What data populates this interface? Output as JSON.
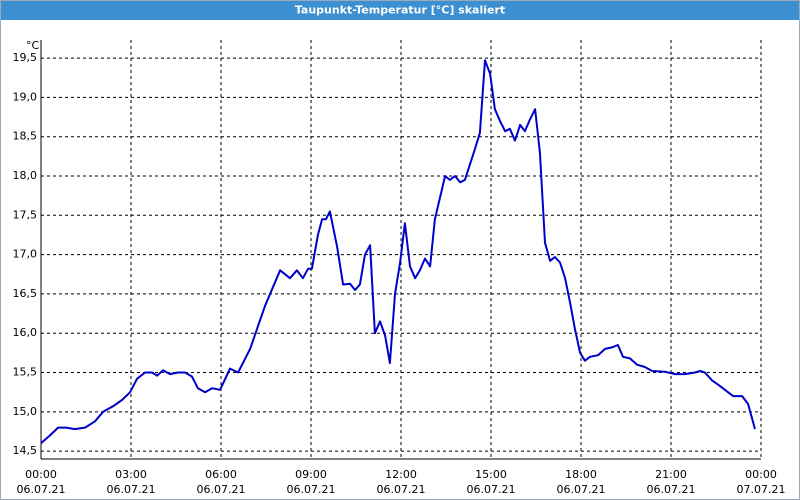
{
  "chart_data": {
    "type": "line",
    "title": "Taupunkt-Temperatur [°C] skaliert",
    "y_unit": "°C",
    "x": [
      0,
      0.3,
      0.57,
      0.83,
      1.13,
      1.47,
      1.8,
      2.07,
      2.4,
      2.7,
      2.97,
      3.2,
      3.47,
      3.7,
      3.87,
      4.07,
      4.3,
      4.57,
      4.8,
      5.03,
      5.23,
      5.47,
      5.7,
      5.97,
      6.3,
      6.57,
      6.97,
      7.47,
      7.97,
      8.3,
      8.53,
      8.73,
      8.9,
      9.03,
      9.23,
      9.37,
      9.5,
      9.63,
      9.87,
      10.07,
      10.3,
      10.47,
      10.63,
      10.8,
      10.97,
      11.13,
      11.3,
      11.47,
      11.63,
      11.8,
      11.97,
      12.13,
      12.3,
      12.47,
      12.63,
      12.8,
      12.97,
      13.13,
      13.47,
      13.63,
      13.8,
      13.97,
      14.13,
      14.47,
      14.63,
      14.8,
      14.97,
      15.13,
      15.3,
      15.47,
      15.63,
      15.8,
      15.97,
      16.13,
      16.3,
      16.47,
      16.63,
      16.8,
      16.97,
      17.13,
      17.3,
      17.47,
      17.63,
      17.8,
      17.97,
      18.13,
      18.3,
      18.57,
      18.8,
      19.03,
      19.23,
      19.4,
      19.63,
      19.87,
      20.13,
      20.37,
      20.8,
      21.13,
      21.47,
      21.8,
      21.97,
      22.13,
      22.37,
      22.63,
      22.9,
      23.07,
      23.37,
      23.57,
      23.8
    ],
    "series": [
      {
        "name": "Taupunkt-Temperatur",
        "color": "#0000cc",
        "values": [
          14.6,
          14.7,
          14.8,
          14.8,
          14.78,
          14.8,
          14.88,
          15.0,
          15.07,
          15.15,
          15.25,
          15.42,
          15.5,
          15.5,
          15.46,
          15.53,
          15.48,
          15.5,
          15.5,
          15.45,
          15.3,
          15.25,
          15.3,
          15.28,
          15.55,
          15.5,
          15.8,
          16.35,
          16.8,
          16.7,
          16.8,
          16.7,
          16.82,
          16.82,
          17.25,
          17.45,
          17.45,
          17.55,
          17.1,
          16.62,
          16.63,
          16.55,
          16.62,
          17.0,
          17.12,
          16.0,
          16.15,
          15.97,
          15.62,
          16.5,
          16.9,
          17.4,
          16.85,
          16.7,
          16.8,
          16.95,
          16.85,
          17.45,
          18.0,
          17.95,
          18.0,
          17.92,
          17.95,
          18.35,
          18.55,
          19.47,
          19.3,
          18.85,
          18.7,
          18.57,
          18.6,
          18.45,
          18.65,
          18.57,
          18.72,
          18.85,
          18.3,
          17.15,
          16.92,
          16.97,
          16.9,
          16.7,
          16.4,
          16.05,
          15.75,
          15.65,
          15.7,
          15.72,
          15.8,
          15.82,
          15.85,
          15.7,
          15.68,
          15.6,
          15.57,
          15.52,
          15.51,
          15.48,
          15.48,
          15.5,
          15.52,
          15.5,
          15.4,
          15.33,
          15.25,
          15.2,
          15.2,
          15.1,
          14.78
        ]
      }
    ],
    "xlim": [
      0,
      24
    ],
    "xticks": [
      {
        "value": 0,
        "label": "00:00"
      },
      {
        "value": 3,
        "label": "03:00"
      },
      {
        "value": 6,
        "label": "06:00"
      },
      {
        "value": 9,
        "label": "09:00"
      },
      {
        "value": 12,
        "label": "12:00"
      },
      {
        "value": 15,
        "label": "15:00"
      },
      {
        "value": 18,
        "label": "18:00"
      },
      {
        "value": 21,
        "label": "21:00"
      },
      {
        "value": 24,
        "label": "00:00"
      }
    ],
    "xtick_dates": [
      "06.07.21",
      "06.07.21",
      "06.07.21",
      "06.07.21",
      "06.07.21",
      "06.07.21",
      "06.07.21",
      "06.07.21",
      "07.07.21"
    ],
    "ylim": [
      14.4,
      19.73
    ],
    "yticks": [
      {
        "value": 14.5,
        "label": "14,5"
      },
      {
        "value": 15,
        "label": "15,0"
      },
      {
        "value": 15.5,
        "label": "15,5"
      },
      {
        "value": 16,
        "label": "16,0"
      },
      {
        "value": 16.5,
        "label": "16,5"
      },
      {
        "value": 17,
        "label": "17,0"
      },
      {
        "value": 17.5,
        "label": "17,5"
      },
      {
        "value": 18,
        "label": "18,0"
      },
      {
        "value": 18.5,
        "label": "18,5"
      },
      {
        "value": 19,
        "label": "19,0"
      },
      {
        "value": 19.5,
        "label": "19,5"
      }
    ],
    "grid": true
  }
}
